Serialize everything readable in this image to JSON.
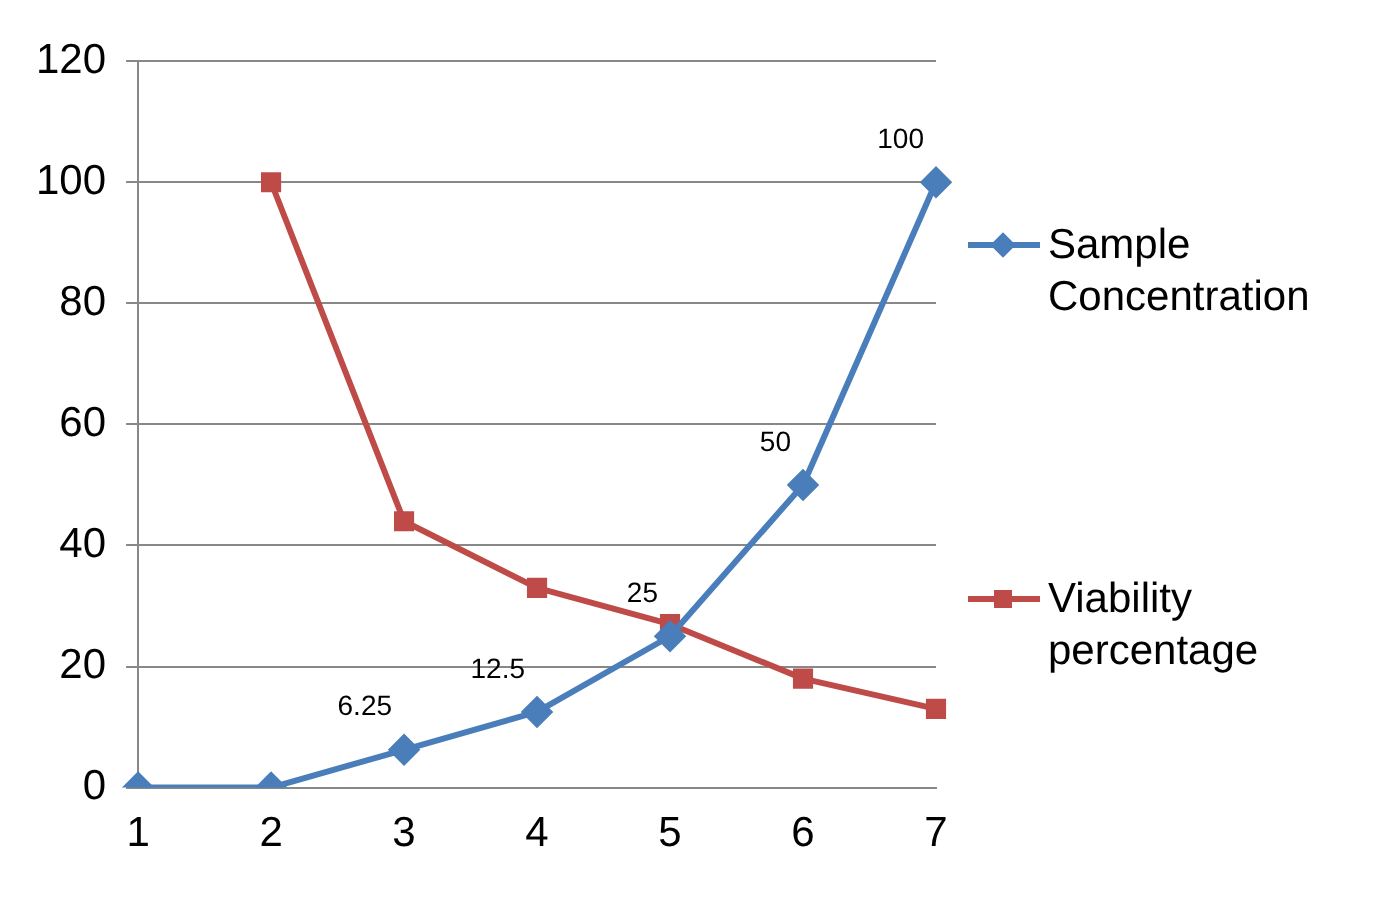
{
  "chart_data": {
    "type": "line",
    "categories": [
      "1",
      "2",
      "3",
      "4",
      "5",
      "6",
      "7"
    ],
    "series": [
      {
        "name": "Sample Concentration",
        "color": "#4a7ebb",
        "marker": "diamond",
        "values": [
          0,
          0,
          6.25,
          12.5,
          25,
          50,
          100
        ],
        "value_labels": [
          null,
          null,
          "6.25",
          "12.5",
          "25",
          "50",
          "100"
        ]
      },
      {
        "name": "Viability percentage",
        "color": "#be4b48",
        "marker": "square",
        "values": [
          null,
          100,
          44,
          33,
          27,
          18,
          13
        ]
      }
    ],
    "ylim": [
      0,
      120
    ],
    "yticks": [
      0,
      20,
      40,
      60,
      80,
      100,
      120
    ],
    "grid": "y",
    "legend": "right"
  }
}
